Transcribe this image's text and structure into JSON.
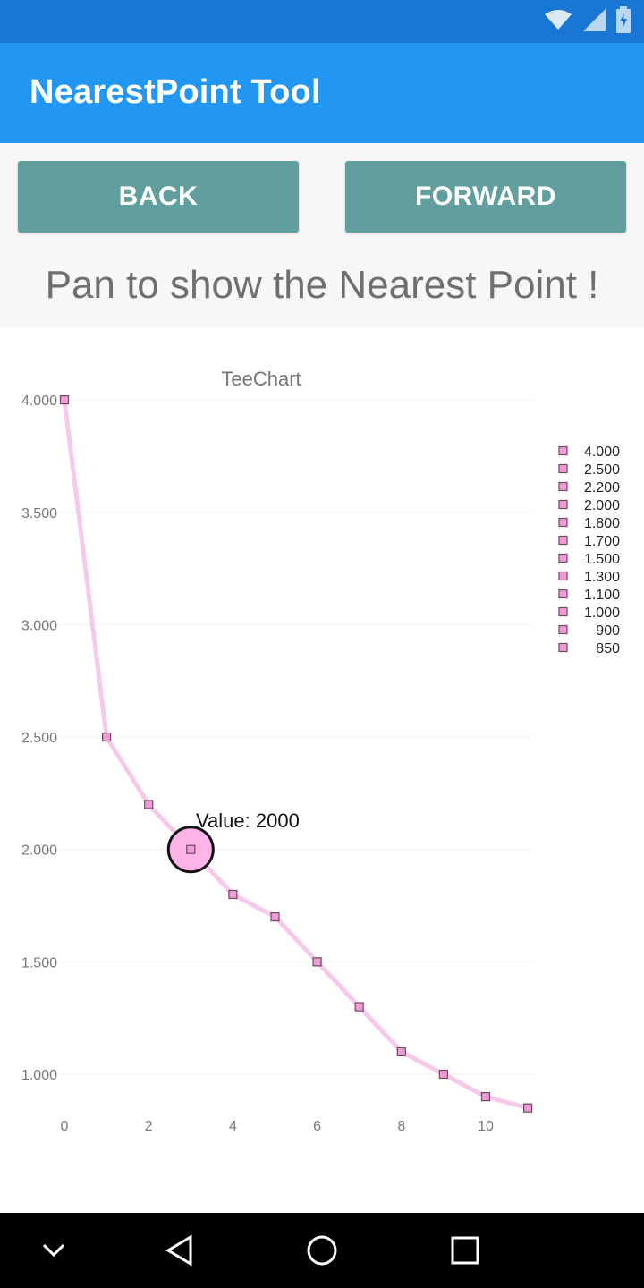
{
  "app": {
    "title": "NearestPoint Tool"
  },
  "controls": {
    "back_label": "BACK",
    "forward_label": "FORWARD",
    "instruction": "Pan to show the Nearest Point !"
  },
  "colors": {
    "status_bar": "#1976D2",
    "app_bar": "#2196F3",
    "button": "#619F9F",
    "series_line": "#F8C8EA",
    "marker_fill": "#F29AD8"
  },
  "icons": {
    "status": [
      "wifi-icon",
      "signal-icon",
      "battery-icon"
    ],
    "nav": [
      "chevron-down-icon",
      "back-triangle-icon",
      "home-circle-icon",
      "recents-square-icon"
    ]
  },
  "chart_data": {
    "type": "line",
    "title": "TeeChart",
    "x": [
      0,
      1,
      2,
      3,
      4,
      5,
      6,
      7,
      8,
      9,
      10,
      11
    ],
    "series": [
      {
        "values": [
          4000,
          2500,
          2200,
          2000,
          1800,
          1700,
          1500,
          1300,
          1100,
          1000,
          900,
          850
        ]
      }
    ],
    "x_ticks": [
      "0",
      "2",
      "4",
      "6",
      "8",
      "10"
    ],
    "y_ticks": [
      "1.000",
      "1.500",
      "2.000",
      "2.500",
      "3.000",
      "3.500",
      "4.000"
    ],
    "legend": [
      "4.000",
      "2.500",
      "2.200",
      "2.000",
      "1.800",
      "1.700",
      "1.500",
      "1.300",
      "1.100",
      "1.000",
      "900",
      "850"
    ],
    "legend_position": "right",
    "highlight": {
      "x": 3,
      "y": 2000,
      "label": "Value: 2000"
    },
    "xlim": [
      0,
      11
    ],
    "ylim": [
      850,
      4000
    ],
    "grid": true
  }
}
